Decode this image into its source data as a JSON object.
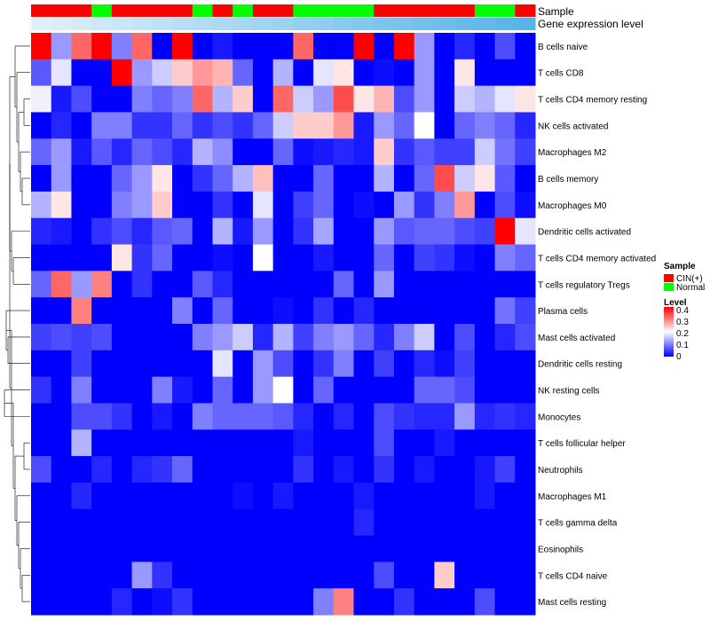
{
  "chart_data": {
    "type": "heatmap",
    "annotations": {
      "sample_label": "Sample",
      "expression_label": "Gene expression level"
    },
    "sample_groups": [
      "CIN(+)",
      "CIN(+)",
      "CIN(+)",
      "Normal",
      "CIN(+)",
      "CIN(+)",
      "CIN(+)",
      "CIN(+)",
      "Normal",
      "CIN(+)",
      "Normal",
      "CIN(+)",
      "CIN(+)",
      "Normal",
      "Normal",
      "Normal",
      "Normal",
      "CIN(+)",
      "CIN(+)",
      "CIN(+)",
      "CIN(+)",
      "CIN(+)",
      "Normal",
      "Normal",
      "CIN(+)"
    ],
    "expression_levels": [
      0.04,
      0.08,
      0.12,
      0.16,
      0.2,
      0.24,
      0.28,
      0.32,
      0.36,
      0.4,
      0.44,
      0.48,
      0.52,
      0.56,
      0.6,
      0.64,
      0.68,
      0.72,
      0.76,
      0.8,
      0.84,
      0.88,
      0.92,
      0.96,
      1.0
    ],
    "rows": [
      "B cells naive",
      "T cells CD8",
      "T cells CD4 memory resting",
      "NK cells activated",
      "Macrophages M2",
      "B cells memory",
      "Macrophages M0",
      "Dendritic cells activated",
      "T cells CD4 memory activated",
      "T cells regulatory  Tregs",
      "Plasma cells",
      "Mast cells activated",
      "Dendritic cells resting",
      "NK resting cells",
      "Monocytes",
      "T cells follicular helper",
      "Neutrophils",
      "Macrophages M1",
      "T cells gamma delta",
      "Eosinophils",
      "T cells CD4 naive",
      "Mast cells resting"
    ],
    "values": [
      [
        0.4,
        0.12,
        0.32,
        0.4,
        0.1,
        0.32,
        0.0,
        0.4,
        0.0,
        0.02,
        0.0,
        0.0,
        0.0,
        0.32,
        0.0,
        0.0,
        0.4,
        0.0,
        0.4,
        0.12,
        0.0,
        0.03,
        0.0,
        0.06,
        0.0
      ],
      [
        0.07,
        0.18,
        0.0,
        0.0,
        0.4,
        0.12,
        0.16,
        0.24,
        0.28,
        0.26,
        0.08,
        0.0,
        0.14,
        0.0,
        0.18,
        0.22,
        0.0,
        0.01,
        0.0,
        0.12,
        0.0,
        0.22,
        0.0,
        0.0,
        0.0
      ],
      [
        0.19,
        0.02,
        0.06,
        0.0,
        0.0,
        0.1,
        0.08,
        0.1,
        0.32,
        0.14,
        0.24,
        0.0,
        0.32,
        0.16,
        0.12,
        0.34,
        0.22,
        0.26,
        0.06,
        0.12,
        0.0,
        0.16,
        0.14,
        0.18,
        0.22
      ],
      [
        0.0,
        0.03,
        0.0,
        0.1,
        0.1,
        0.04,
        0.04,
        0.08,
        0.04,
        0.06,
        0.04,
        0.08,
        0.16,
        0.24,
        0.24,
        0.28,
        0.02,
        0.12,
        0.08,
        0.2,
        0.0,
        0.08,
        0.1,
        0.08,
        0.03
      ],
      [
        0.08,
        0.12,
        0.02,
        0.07,
        0.03,
        0.08,
        0.06,
        0.03,
        0.14,
        0.11,
        0.0,
        0.0,
        0.08,
        0.01,
        0.02,
        0.03,
        0.02,
        0.24,
        0.04,
        0.07,
        0.05,
        0.05,
        0.16,
        0.09,
        0.05
      ],
      [
        0.0,
        0.12,
        0.0,
        0.0,
        0.08,
        0.12,
        0.22,
        0.0,
        0.04,
        0.08,
        0.14,
        0.25,
        0.0,
        0.0,
        0.08,
        0.0,
        0.0,
        0.14,
        0.0,
        0.08,
        0.34,
        0.16,
        0.22,
        0.07,
        0.0
      ],
      [
        0.14,
        0.22,
        0.0,
        0.0,
        0.1,
        0.12,
        0.24,
        0.0,
        0.0,
        0.04,
        0.0,
        0.18,
        0.0,
        0.05,
        0.08,
        0.0,
        0.01,
        0.0,
        0.12,
        0.04,
        0.1,
        0.28,
        0.0,
        0.06,
        0.01
      ],
      [
        0.03,
        0.02,
        0.0,
        0.04,
        0.06,
        0.03,
        0.07,
        0.08,
        0.0,
        0.14,
        0.02,
        0.12,
        0.0,
        0.04,
        0.13,
        0.0,
        0.0,
        0.12,
        0.07,
        0.08,
        0.08,
        0.06,
        0.05,
        0.4,
        0.18
      ],
      [
        0.0,
        0.0,
        0.0,
        0.0,
        0.22,
        0.04,
        0.08,
        0.0,
        0.0,
        0.01,
        0.0,
        0.2,
        0.0,
        0.0,
        0.02,
        0.0,
        0.0,
        0.08,
        0.0,
        0.05,
        0.04,
        0.01,
        0.0,
        0.1,
        0.08
      ],
      [
        0.08,
        0.32,
        0.12,
        0.3,
        0.0,
        0.04,
        0.0,
        0.0,
        0.07,
        0.03,
        0.0,
        0.0,
        0.0,
        0.0,
        0.0,
        0.08,
        0.0,
        0.12,
        0.0,
        0.0,
        0.0,
        0.0,
        0.0,
        0.0,
        0.0
      ],
      [
        0.0,
        0.0,
        0.3,
        0.0,
        0.0,
        0.0,
        0.0,
        0.1,
        0.0,
        0.08,
        0.0,
        0.0,
        0.01,
        0.0,
        0.04,
        0.0,
        0.03,
        0.0,
        0.0,
        0.0,
        0.0,
        0.0,
        0.0,
        0.09,
        0.05
      ],
      [
        0.05,
        0.06,
        0.05,
        0.06,
        0.0,
        0.0,
        0.0,
        0.0,
        0.1,
        0.12,
        0.16,
        0.03,
        0.14,
        0.05,
        0.1,
        0.12,
        0.08,
        0.03,
        0.1,
        0.16,
        0.0,
        0.06,
        0.0,
        0.03,
        0.06
      ],
      [
        0.0,
        0.0,
        0.05,
        0.0,
        0.0,
        0.0,
        0.0,
        0.0,
        0.0,
        0.18,
        0.0,
        0.12,
        0.06,
        0.0,
        0.04,
        0.1,
        0.0,
        0.05,
        0.0,
        0.03,
        0.01,
        0.05,
        0.0,
        0.0,
        0.0
      ],
      [
        0.04,
        0.0,
        0.1,
        0.0,
        0.0,
        0.0,
        0.1,
        0.02,
        0.0,
        0.08,
        0.0,
        0.12,
        0.2,
        0.0,
        0.08,
        0.0,
        0.0,
        0.0,
        0.0,
        0.08,
        0.08,
        0.06,
        0.0,
        0.0,
        0.0
      ],
      [
        0.0,
        0.0,
        0.06,
        0.06,
        0.04,
        0.0,
        0.02,
        0.0,
        0.1,
        0.08,
        0.08,
        0.08,
        0.07,
        0.03,
        0.0,
        0.03,
        0.0,
        0.06,
        0.04,
        0.03,
        0.03,
        0.12,
        0.03,
        0.04,
        0.03
      ],
      [
        0.0,
        0.0,
        0.14,
        0.0,
        0.0,
        0.0,
        0.0,
        0.0,
        0.0,
        0.0,
        0.0,
        0.0,
        0.0,
        0.02,
        0.0,
        0.0,
        0.0,
        0.06,
        0.0,
        0.0,
        0.02,
        0.0,
        0.0,
        0.0,
        0.0
      ],
      [
        0.06,
        0.0,
        0.0,
        0.03,
        0.0,
        0.03,
        0.04,
        0.08,
        0.0,
        0.0,
        0.0,
        0.0,
        0.0,
        0.04,
        0.0,
        0.02,
        0.0,
        0.04,
        0.0,
        0.02,
        0.0,
        0.0,
        0.02,
        0.05,
        0.0
      ],
      [
        0.0,
        0.0,
        0.03,
        0.0,
        0.0,
        0.0,
        0.0,
        0.0,
        0.0,
        0.0,
        0.01,
        0.0,
        0.02,
        0.0,
        0.0,
        0.0,
        0.02,
        0.0,
        0.0,
        0.0,
        0.0,
        0.0,
        0.02,
        0.0,
        0.0
      ],
      [
        0.0,
        0.0,
        0.0,
        0.0,
        0.0,
        0.0,
        0.0,
        0.0,
        0.0,
        0.0,
        0.0,
        0.0,
        0.0,
        0.0,
        0.0,
        0.0,
        0.03,
        0.0,
        0.0,
        0.0,
        0.0,
        0.0,
        0.0,
        0.0,
        0.0
      ],
      [
        0.0,
        0.0,
        0.0,
        0.0,
        0.0,
        0.0,
        0.0,
        0.0,
        0.0,
        0.0,
        0.0,
        0.0,
        0.0,
        0.0,
        0.0,
        0.0,
        0.0,
        0.0,
        0.0,
        0.0,
        0.0,
        0.0,
        0.0,
        0.0,
        0.0
      ],
      [
        0.0,
        0.0,
        0.0,
        0.0,
        0.0,
        0.12,
        0.04,
        0.0,
        0.0,
        0.0,
        0.0,
        0.0,
        0.0,
        0.0,
        0.0,
        0.0,
        0.0,
        0.06,
        0.0,
        0.0,
        0.24,
        0.0,
        0.0,
        0.0,
        0.0
      ],
      [
        0.0,
        0.0,
        0.0,
        0.0,
        0.03,
        0.0,
        0.01,
        0.04,
        0.0,
        0.0,
        0.0,
        0.0,
        0.0,
        0.0,
        0.1,
        0.3,
        0.0,
        0.0,
        0.04,
        0.0,
        0.0,
        0.0,
        0.06,
        0.0,
        0.0
      ]
    ],
    "legend": {
      "sample_title": "Sample",
      "sample_entries": [
        {
          "label": "CIN(+)",
          "color": "#ff0000"
        },
        {
          "label": "Normal",
          "color": "#00ff00"
        }
      ],
      "level_title": "Level",
      "level_ticks": [
        0.4,
        0.3,
        0.2,
        0.1,
        0
      ],
      "level_range": [
        0,
        0.4
      ]
    },
    "colors": {
      "low": "#0000ff",
      "mid": "#ffffff",
      "high": "#ff0000",
      "expr_light": "#e6f2fa",
      "expr_dark": "#56b4e9"
    }
  }
}
